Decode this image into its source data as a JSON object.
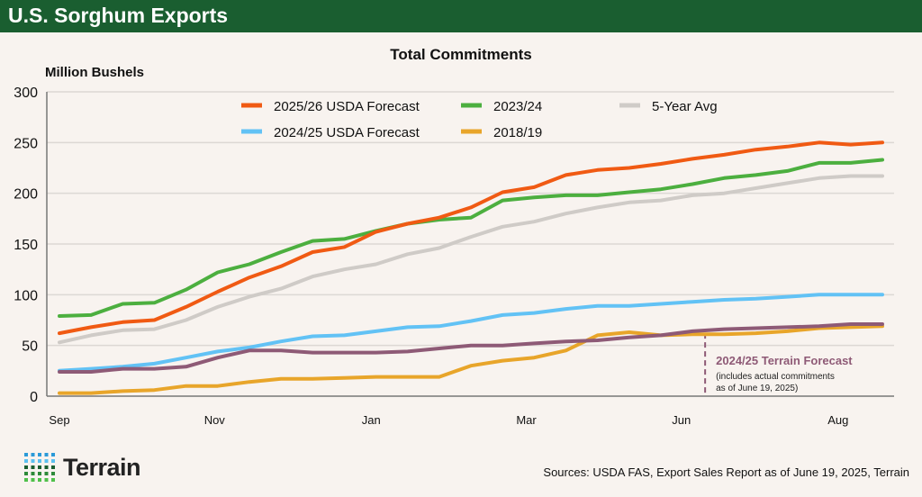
{
  "header": {
    "title": "U.S. Sorghum Exports"
  },
  "chart_data": {
    "type": "line",
    "title": "Total Commitments",
    "ylabel": "Million Bushels",
    "xlabel": "",
    "ylim": [
      0,
      300
    ],
    "yticks": [
      0,
      50,
      100,
      150,
      200,
      250,
      300
    ],
    "xticks": [
      {
        "label": "Sep",
        "week": 0
      },
      {
        "label": "Nov",
        "week": 9.8
      },
      {
        "label": "Jan",
        "week": 19.7
      },
      {
        "label": "Mar",
        "week": 29.5
      },
      {
        "label": "Jun",
        "week": 39.3
      },
      {
        "label": "Aug",
        "week": 49.2
      }
    ],
    "x": [
      0,
      2,
      4,
      6,
      8,
      10,
      12,
      14,
      16,
      18,
      20,
      22,
      24,
      26,
      28,
      30,
      32,
      34,
      36,
      38,
      40,
      42,
      44,
      46,
      48,
      50,
      52
    ],
    "grid": "horizontal",
    "legend_position": "top-center",
    "series": [
      {
        "name": "5-Year Avg",
        "color": "#cfcbc7",
        "values": [
          53,
          60,
          65,
          66,
          75,
          88,
          98,
          106,
          118,
          125,
          130,
          140,
          146,
          157,
          167,
          172,
          180,
          186,
          191,
          193,
          198,
          200,
          205,
          210,
          215,
          217,
          217
        ]
      },
      {
        "name": "2018/19",
        "color": "#e8a52a",
        "values": [
          3,
          3,
          5,
          6,
          10,
          10,
          14,
          17,
          17,
          18,
          19,
          19,
          19,
          30,
          35,
          38,
          45,
          60,
          63,
          60,
          61,
          61,
          62,
          64,
          67,
          68,
          69
        ]
      },
      {
        "name": "2024/25 USDA Forecast",
        "color": "#62c2f5",
        "values": [
          25,
          27,
          29,
          32,
          38,
          44,
          48,
          54,
          59,
          60,
          64,
          68,
          69,
          74,
          80,
          82,
          86,
          89,
          89,
          91,
          93,
          95,
          96,
          98,
          100,
          100,
          100
        ]
      },
      {
        "name": "2024/25 Terrain Forecast",
        "color": "#8e5a76",
        "values": [
          24,
          24,
          27,
          27,
          29,
          38,
          45,
          45,
          43,
          43,
          43,
          44,
          47,
          50,
          50,
          52,
          54,
          55,
          58,
          60,
          64,
          66,
          67,
          68,
          69,
          71,
          71
        ]
      },
      {
        "name": "2023/24",
        "color": "#4caf3f",
        "values": [
          79,
          80,
          91,
          92,
          105,
          122,
          130,
          142,
          153,
          155,
          163,
          170,
          174,
          176,
          193,
          196,
          198,
          198,
          201,
          204,
          209,
          215,
          218,
          222,
          230,
          230,
          233
        ]
      },
      {
        "name": "2025/26 USDA Forecast",
        "color": "#f05a13",
        "values": [
          62,
          68,
          73,
          75,
          88,
          103,
          117,
          128,
          142,
          147,
          162,
          170,
          176,
          186,
          201,
          206,
          218,
          223,
          225,
          229,
          234,
          238,
          243,
          246,
          250,
          248,
          250
        ]
      }
    ],
    "legend": [
      "2025/26 USDA Forecast",
      "2023/24",
      "5-Year Avg",
      "2024/25 USDA Forecast",
      "2018/19"
    ],
    "annotation": {
      "week": 40.8,
      "title": "2024/25 Terrain Forecast",
      "line1": "(includes actual commitments",
      "line2": "as of June 19, 2025)",
      "color": "#8e5a76"
    }
  },
  "footer": {
    "logo": "Terrain",
    "sources": "Sources: USDA FAS, Export Sales Report as of June 19, 2025, Terrain"
  }
}
